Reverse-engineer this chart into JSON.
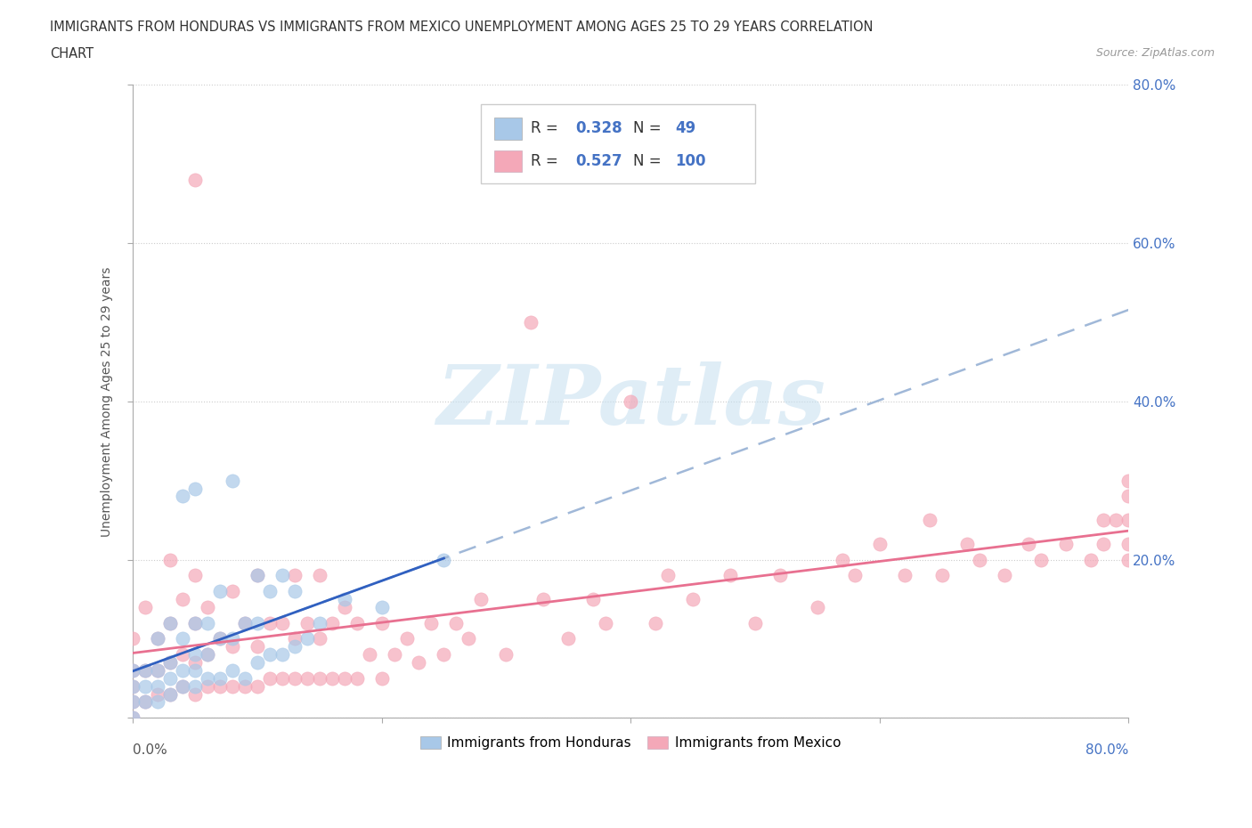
{
  "title_line1": "IMMIGRANTS FROM HONDURAS VS IMMIGRANTS FROM MEXICO UNEMPLOYMENT AMONG AGES 25 TO 29 YEARS CORRELATION",
  "title_line2": "CHART",
  "source": "Source: ZipAtlas.com",
  "ylabel": "Unemployment Among Ages 25 to 29 years",
  "xlim": [
    0,
    0.8
  ],
  "ylim": [
    0,
    0.8
  ],
  "xtick_labels_bottom": [
    "0.0%",
    "80.0%"
  ],
  "xtick_vals_bottom": [
    0.0,
    0.8
  ],
  "ytick_labels": [
    "20.0%",
    "40.0%",
    "60.0%",
    "80.0%"
  ],
  "ytick_vals": [
    0.2,
    0.4,
    0.6,
    0.8
  ],
  "background_color": "#ffffff",
  "watermark_text": "ZIPatlas",
  "watermark_color": "#c5dff0",
  "R_honduras": 0.328,
  "N_honduras": 49,
  "R_mexico": 0.527,
  "N_mexico": 100,
  "honduras_scatter_color": "#a8c8e8",
  "mexico_scatter_color": "#f4a8b8",
  "honduras_trend_color": "#3060c0",
  "honduras_trend_ext_color": "#a0b8d8",
  "mexico_trend_color": "#e87090",
  "legend_stat_color": "#4472c4",
  "legend_label_color": "#333333",
  "right_tick_color": "#4472c4",
  "title_color": "#333333",
  "source_color": "#999999",
  "grid_color": "#cccccc",
  "legend_label_honduras": "Immigrants from Honduras",
  "legend_label_mexico": "Immigrants from Mexico",
  "honduras_x": [
    0.0,
    0.0,
    0.0,
    0.0,
    0.01,
    0.01,
    0.01,
    0.02,
    0.02,
    0.02,
    0.02,
    0.03,
    0.03,
    0.03,
    0.03,
    0.04,
    0.04,
    0.04,
    0.04,
    0.05,
    0.05,
    0.05,
    0.05,
    0.05,
    0.06,
    0.06,
    0.06,
    0.07,
    0.07,
    0.07,
    0.08,
    0.08,
    0.08,
    0.09,
    0.09,
    0.1,
    0.1,
    0.1,
    0.11,
    0.11,
    0.12,
    0.12,
    0.13,
    0.13,
    0.14,
    0.15,
    0.17,
    0.2,
    0.25
  ],
  "honduras_y": [
    0.0,
    0.02,
    0.04,
    0.06,
    0.02,
    0.04,
    0.06,
    0.02,
    0.04,
    0.06,
    0.1,
    0.03,
    0.05,
    0.07,
    0.12,
    0.04,
    0.06,
    0.1,
    0.28,
    0.04,
    0.06,
    0.08,
    0.12,
    0.29,
    0.05,
    0.08,
    0.12,
    0.05,
    0.1,
    0.16,
    0.06,
    0.1,
    0.3,
    0.05,
    0.12,
    0.07,
    0.12,
    0.18,
    0.08,
    0.16,
    0.08,
    0.18,
    0.09,
    0.16,
    0.1,
    0.12,
    0.15,
    0.14,
    0.2
  ],
  "mexico_x": [
    0.0,
    0.0,
    0.0,
    0.0,
    0.0,
    0.01,
    0.01,
    0.01,
    0.02,
    0.02,
    0.02,
    0.03,
    0.03,
    0.03,
    0.03,
    0.04,
    0.04,
    0.04,
    0.05,
    0.05,
    0.05,
    0.05,
    0.05,
    0.06,
    0.06,
    0.06,
    0.07,
    0.07,
    0.08,
    0.08,
    0.08,
    0.09,
    0.09,
    0.1,
    0.1,
    0.1,
    0.11,
    0.11,
    0.12,
    0.12,
    0.13,
    0.13,
    0.13,
    0.14,
    0.14,
    0.15,
    0.15,
    0.15,
    0.16,
    0.16,
    0.17,
    0.17,
    0.18,
    0.18,
    0.19,
    0.2,
    0.2,
    0.21,
    0.22,
    0.23,
    0.24,
    0.25,
    0.26,
    0.27,
    0.28,
    0.3,
    0.32,
    0.33,
    0.35,
    0.37,
    0.38,
    0.4,
    0.42,
    0.43,
    0.45,
    0.48,
    0.5,
    0.52,
    0.55,
    0.57,
    0.58,
    0.6,
    0.62,
    0.64,
    0.65,
    0.67,
    0.68,
    0.7,
    0.72,
    0.73,
    0.75,
    0.77,
    0.78,
    0.78,
    0.79,
    0.8,
    0.8,
    0.8,
    0.8,
    0.8
  ],
  "mexico_y": [
    0.0,
    0.02,
    0.04,
    0.06,
    0.1,
    0.02,
    0.06,
    0.14,
    0.03,
    0.06,
    0.1,
    0.03,
    0.07,
    0.12,
    0.2,
    0.04,
    0.08,
    0.15,
    0.03,
    0.07,
    0.12,
    0.68,
    0.18,
    0.04,
    0.08,
    0.14,
    0.04,
    0.1,
    0.04,
    0.09,
    0.16,
    0.04,
    0.12,
    0.04,
    0.09,
    0.18,
    0.05,
    0.12,
    0.05,
    0.12,
    0.05,
    0.1,
    0.18,
    0.05,
    0.12,
    0.05,
    0.1,
    0.18,
    0.05,
    0.12,
    0.05,
    0.14,
    0.05,
    0.12,
    0.08,
    0.05,
    0.12,
    0.08,
    0.1,
    0.07,
    0.12,
    0.08,
    0.12,
    0.1,
    0.15,
    0.08,
    0.5,
    0.15,
    0.1,
    0.15,
    0.12,
    0.4,
    0.12,
    0.18,
    0.15,
    0.18,
    0.12,
    0.18,
    0.14,
    0.2,
    0.18,
    0.22,
    0.18,
    0.25,
    0.18,
    0.22,
    0.2,
    0.18,
    0.22,
    0.2,
    0.22,
    0.2,
    0.25,
    0.22,
    0.25,
    0.2,
    0.25,
    0.22,
    0.28,
    0.3
  ]
}
